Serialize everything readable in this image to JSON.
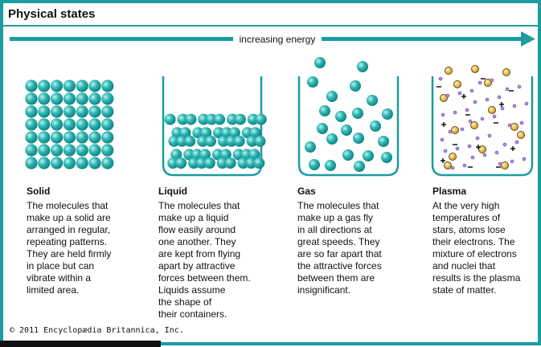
{
  "header": {
    "title": "Physical states"
  },
  "arrow": {
    "label": "increasing energy"
  },
  "states": [
    {
      "name": "Solid",
      "lines": [
        "The molecules that",
        "make up a solid are",
        "arranged in regular,",
        "repeating patterns.",
        "They are held firmly",
        "in place but can",
        "vibrate within a",
        "limited area."
      ]
    },
    {
      "name": "Liquid",
      "lines": [
        "The molecules that",
        "make up a liquid",
        "flow easily around",
        "one another. They",
        "are kept from flying",
        "apart by attractive",
        "forces between them.",
        "Liquids assume",
        "the shape of",
        "their containers."
      ]
    },
    {
      "name": "Gas",
      "lines": [
        "The molecules that",
        "make up a gas fly",
        "in all directions at",
        "great speeds. They",
        "are so far apart that",
        "the attractive forces",
        "between them are",
        "insignificant."
      ]
    },
    {
      "name": "Plasma",
      "lines": [
        "At the very high",
        "temperatures of",
        "stars, atoms lose",
        "their electrons. The",
        "mixture of electrons",
        "and nuclei that",
        "results is the plasma",
        "state of matter."
      ]
    }
  ],
  "footer": {
    "copyright": "© 2011 Encyclopædia Britannica, Inc."
  }
}
